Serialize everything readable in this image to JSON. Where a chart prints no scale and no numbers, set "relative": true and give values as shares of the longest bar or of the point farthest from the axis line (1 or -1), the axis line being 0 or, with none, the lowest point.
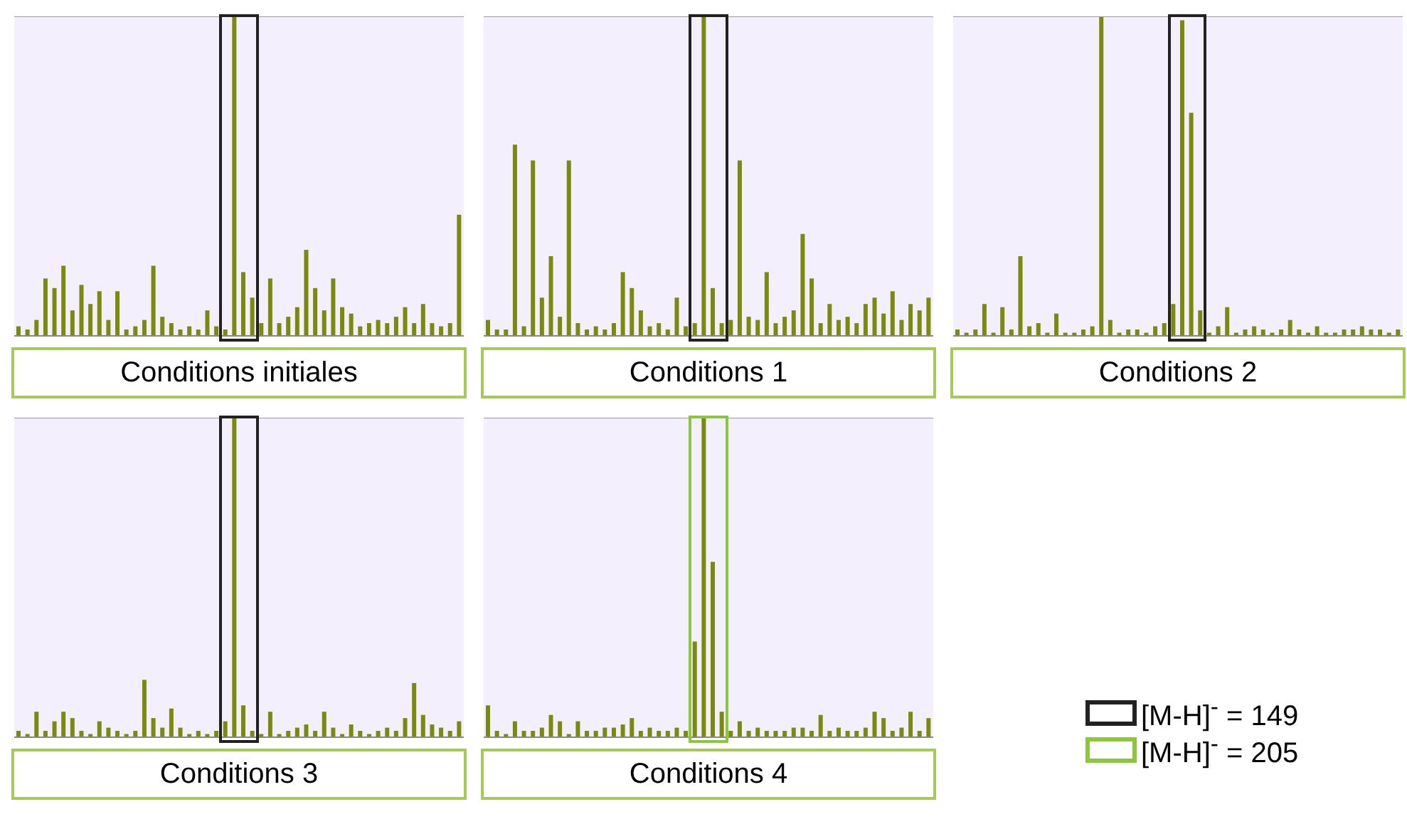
{
  "chart_data": [
    {
      "type": "bar",
      "xlabel": "Conditions initiales",
      "relative": true,
      "color": "#7b8a0c",
      "grid": "y",
      "categories": [
        null,
        null,
        null,
        null,
        null,
        null,
        null,
        null,
        null,
        null,
        null,
        null,
        null,
        null,
        null,
        null,
        null,
        null,
        null,
        null,
        null,
        null,
        null,
        null,
        null,
        null,
        null,
        null,
        null,
        null,
        null,
        null,
        null,
        null,
        null,
        null,
        null,
        null,
        null,
        null,
        null,
        null,
        null,
        null,
        null,
        null,
        null,
        null,
        null,
        null
      ],
      "values": [
        0.03,
        0.02,
        0.05,
        0.18,
        0.15,
        0.22,
        0.08,
        0.16,
        0.1,
        0.14,
        0.05,
        0.14,
        0.02,
        0.03,
        0.05,
        0.22,
        0.06,
        0.04,
        0.02,
        0.03,
        0.02,
        0.08,
        0.03,
        0.02,
        1,
        0.2,
        0.12,
        0.04,
        0.18,
        0.04,
        0.06,
        0.09,
        0.27,
        0.15,
        0.08,
        0.18,
        0.09,
        0.07,
        0.03,
        0.04,
        0.05,
        0.04,
        0.06,
        0.09,
        0.04,
        0.1,
        0.04,
        0.03,
        0.04,
        0.38
      ]
    },
    {
      "type": "bar",
      "xlabel": "Conditions 1",
      "relative": true,
      "color": "#7b8a0c",
      "grid": "y",
      "categories": [
        null,
        null,
        null,
        null,
        null,
        null,
        null,
        null,
        null,
        null,
        null,
        null,
        null,
        null,
        null,
        null,
        null,
        null,
        null,
        null,
        null,
        null,
        null,
        null,
        null,
        null,
        null,
        null,
        null,
        null,
        null,
        null,
        null,
        null,
        null,
        null,
        null,
        null,
        null,
        null,
        null,
        null,
        null,
        null,
        null,
        null,
        null,
        null,
        null,
        null
      ],
      "values": [
        0.05,
        0.02,
        0.02,
        0.6,
        0.03,
        0.55,
        0.12,
        0.25,
        0.06,
        0.55,
        0.04,
        0.02,
        0.03,
        0.02,
        0.04,
        0.2,
        0.15,
        0.08,
        0.03,
        0.04,
        0.02,
        0.12,
        0.03,
        0.04,
        1,
        0.15,
        0.04,
        0.05,
        0.55,
        0.06,
        0.05,
        0.2,
        0.04,
        0.06,
        0.08,
        0.32,
        0.18,
        0.04,
        0.1,
        0.05,
        0.06,
        0.04,
        0.1,
        0.12,
        0.07,
        0.14,
        0.05,
        0.1,
        0.08,
        0.12
      ]
    },
    {
      "type": "bar",
      "xlabel": "Conditions 2",
      "relative": true,
      "color": "#7b8a0c",
      "grid": "y",
      "categories": [
        null,
        null,
        null,
        null,
        null,
        null,
        null,
        null,
        null,
        null,
        null,
        null,
        null,
        null,
        null,
        null,
        null,
        null,
        null,
        null,
        null,
        null,
        null,
        null,
        null,
        null,
        null,
        null,
        null,
        null,
        null,
        null,
        null,
        null,
        null,
        null,
        null,
        null,
        null,
        null,
        null,
        null,
        null,
        null,
        null,
        null,
        null,
        null,
        null,
        null
      ],
      "values": [
        0.02,
        0.01,
        0.02,
        0.1,
        0.01,
        0.09,
        0.02,
        0.25,
        0.03,
        0.04,
        0.01,
        0.07,
        0.01,
        0.01,
        0.02,
        0.03,
        1,
        0.05,
        0.01,
        0.02,
        0.02,
        0.01,
        0.03,
        0.04,
        0.1,
        0.99,
        0.7,
        0.08,
        0.01,
        0.03,
        0.09,
        0.01,
        0.02,
        0.03,
        0.02,
        0.01,
        0.02,
        0.05,
        0.02,
        0.01,
        0.03,
        0.01,
        0.01,
        0.02,
        0.02,
        0.03,
        0.02,
        0.02,
        0.01,
        0.02
      ]
    },
    {
      "type": "bar",
      "xlabel": "Conditions 3",
      "relative": true,
      "color": "#7b8a0c",
      "grid": "y",
      "categories": [
        null,
        null,
        null,
        null,
        null,
        null,
        null,
        null,
        null,
        null,
        null,
        null,
        null,
        null,
        null,
        null,
        null,
        null,
        null,
        null,
        null,
        null,
        null,
        null,
        null,
        null,
        null,
        null,
        null,
        null,
        null,
        null,
        null,
        null,
        null,
        null,
        null,
        null,
        null,
        null,
        null,
        null,
        null,
        null,
        null,
        null,
        null,
        null,
        null,
        null
      ],
      "values": [
        0.02,
        0.01,
        0.08,
        0.02,
        0.05,
        0.08,
        0.06,
        0.02,
        0.01,
        0.05,
        0.03,
        0.02,
        0.01,
        0.02,
        0.18,
        0.06,
        0.03,
        0.09,
        0.03,
        0.01,
        0.02,
        0.01,
        0.02,
        0.05,
        1,
        0.1,
        0.02,
        0.01,
        0.08,
        0.01,
        0.02,
        0.03,
        0.04,
        0.02,
        0.08,
        0.03,
        0.01,
        0.04,
        0.02,
        0.01,
        0.02,
        0.03,
        0.02,
        0.06,
        0.17,
        0.07,
        0.04,
        0.03,
        0.02,
        0.05
      ]
    },
    {
      "type": "bar",
      "xlabel": "Conditions 4",
      "relative": true,
      "color": "#7b8a0c",
      "grid": "y",
      "categories": [
        null,
        null,
        null,
        null,
        null,
        null,
        null,
        null,
        null,
        null,
        null,
        null,
        null,
        null,
        null,
        null,
        null,
        null,
        null,
        null,
        null,
        null,
        null,
        null,
        null,
        null,
        null,
        null,
        null,
        null,
        null,
        null,
        null,
        null,
        null,
        null,
        null,
        null,
        null,
        null,
        null,
        null,
        null,
        null,
        null,
        null,
        null,
        null,
        null,
        null
      ],
      "values": [
        0.1,
        0.02,
        0.01,
        0.05,
        0.02,
        0.02,
        0.03,
        0.07,
        0.05,
        0.01,
        0.05,
        0.02,
        0.02,
        0.03,
        0.03,
        0.04,
        0.06,
        0.02,
        0.03,
        0.02,
        0.02,
        0.03,
        0.02,
        0.3,
        1,
        0.55,
        0.08,
        0.02,
        0.05,
        0.02,
        0.03,
        0.02,
        0.02,
        0.02,
        0.03,
        0.03,
        0.02,
        0.07,
        0.02,
        0.03,
        0.02,
        0.02,
        0.03,
        0.08,
        0.06,
        0.02,
        0.03,
        0.08,
        0.02,
        0.06
      ]
    },
    {
      "type": "other",
      "categories": [
        "[M-H]$^{-}$ = 149",
        "[M-H]$^{-}$ = 205"
      ],
      "colors": [
        "#222222",
        "#8cc63f"
      ]
    }
  ]
}
